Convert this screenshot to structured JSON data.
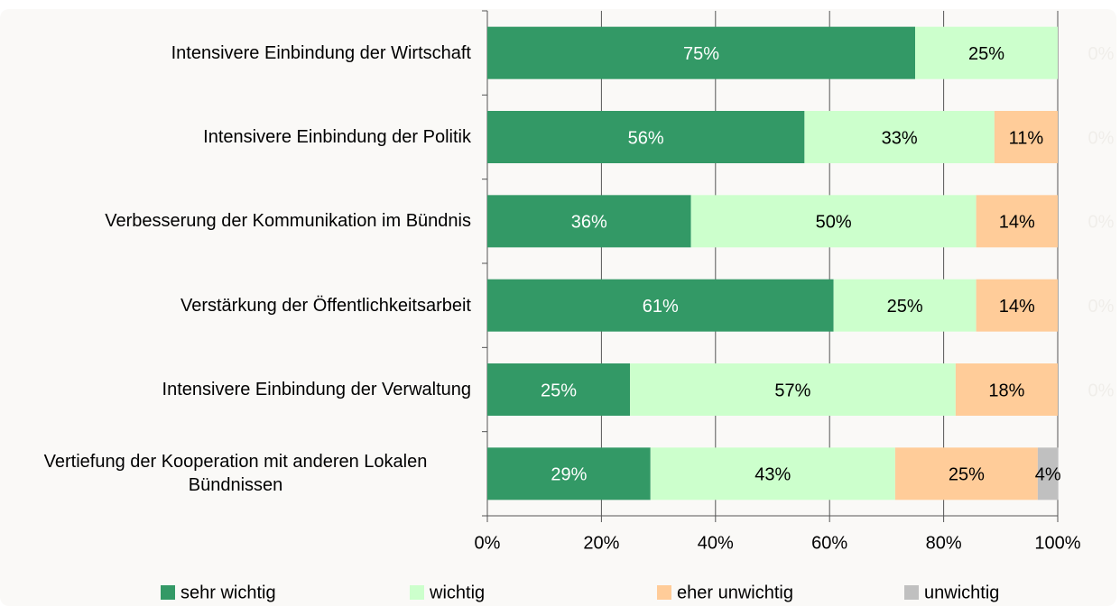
{
  "chart_data": {
    "type": "stacked_barh",
    "categories": [
      "Intensivere Einbindung der Wirtschaft",
      "Intensivere Einbindung der Politik",
      "Verbesserung der Kommunikation im Bündnis",
      "Verstärkung der Öffentlichkeitsarbeit",
      "Intensivere Einbindung der Verwaltung",
      "Vertiefung der Kooperation mit anderen Lokalen Bündnissen"
    ],
    "series": [
      {
        "name": "sehr wichtig",
        "color": "#339966",
        "label_color": "#ffffff",
        "values": [
          75,
          55.6,
          35.7,
          60.7,
          25,
          28.6
        ],
        "value_labels": [
          "75%",
          "56%",
          "36%",
          "61%",
          "25%",
          "29%"
        ]
      },
      {
        "name": "wichtig",
        "color": "#ccffcc",
        "label_color": "#000000",
        "values": [
          25,
          33.3,
          50,
          25,
          57.1,
          42.9
        ],
        "value_labels": [
          "25%",
          "33%",
          "50%",
          "25%",
          "57%",
          "43%"
        ]
      },
      {
        "name": "eher unwichtig",
        "color": "#ffcc99",
        "label_color": "#000000",
        "values": [
          0,
          11.1,
          14.3,
          14.3,
          17.9,
          25
        ],
        "value_labels": [
          null,
          "11%",
          "14%",
          "14%",
          "18%",
          "25%"
        ]
      },
      {
        "name": "unwichtig",
        "color": "#c0c0c0",
        "label_color": "#000000",
        "values": [
          0,
          0,
          0,
          0,
          0,
          3.6
        ],
        "value_labels": [
          "0%",
          "0%",
          "0%",
          "0%",
          "0%",
          "4%"
        ]
      }
    ],
    "xlim": [
      0,
      100
    ],
    "xticks": [
      {
        "value": 0,
        "label": "0%"
      },
      {
        "value": 20,
        "label": "20%"
      },
      {
        "value": 40,
        "label": "40%"
      },
      {
        "value": 60,
        "label": "60%"
      },
      {
        "value": 80,
        "label": "80%"
      },
      {
        "value": 100,
        "label": "100%"
      }
    ],
    "grid": true,
    "legend": "bottom"
  }
}
